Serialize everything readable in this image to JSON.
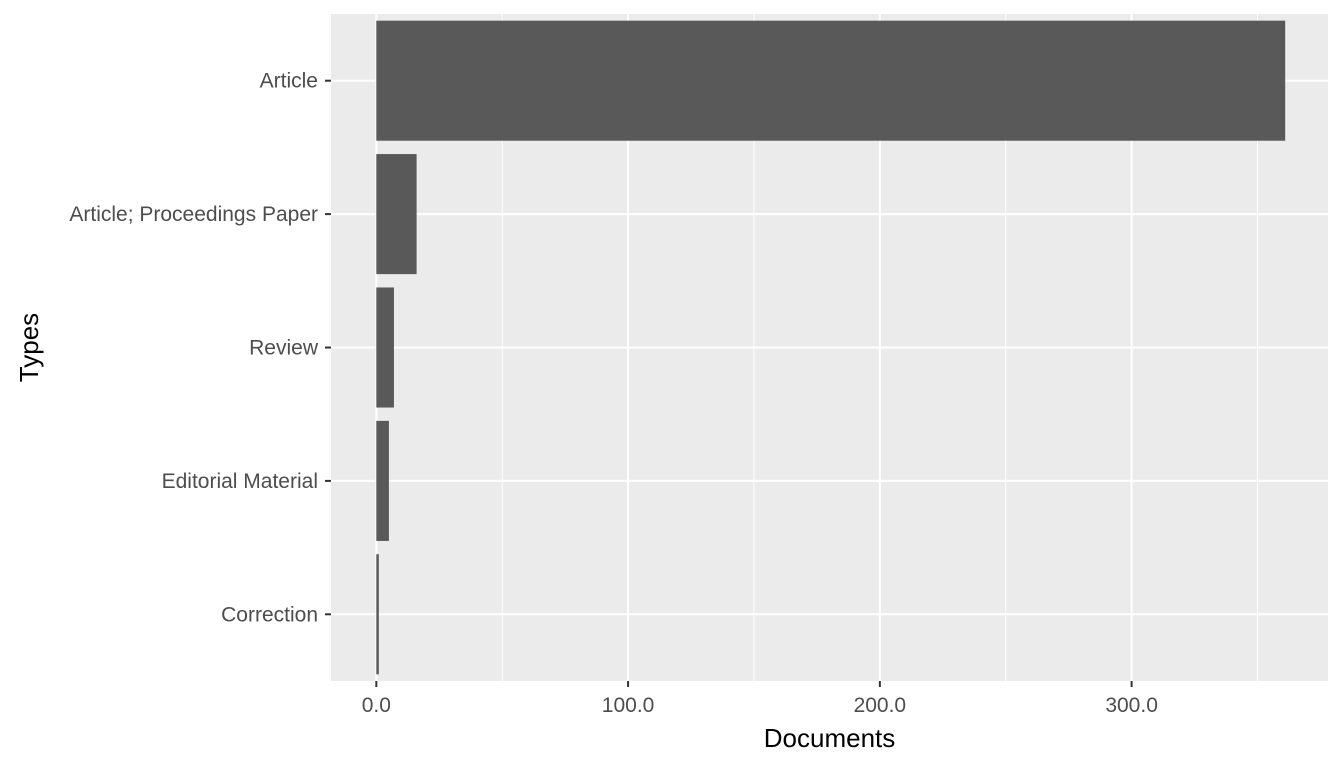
{
  "chart_data": {
    "type": "bar",
    "orientation": "horizontal",
    "categories": [
      "Article",
      "Article; Proceedings Paper",
      "Review",
      "Editorial Material",
      "Correction"
    ],
    "values": [
      361,
      16,
      7,
      5,
      1
    ],
    "xlabel": "Documents",
    "ylabel": "Types",
    "xlim": [
      -18,
      378
    ],
    "x_ticks": [
      0,
      100,
      200,
      300
    ],
    "x_tick_labels": [
      "0.0",
      "100.0",
      "200.0",
      "300.0"
    ],
    "grid": true,
    "legend": "none"
  },
  "colors": {
    "bar": "#595959",
    "panel_background": "#ebebeb",
    "grid_line": "#ffffff"
  }
}
